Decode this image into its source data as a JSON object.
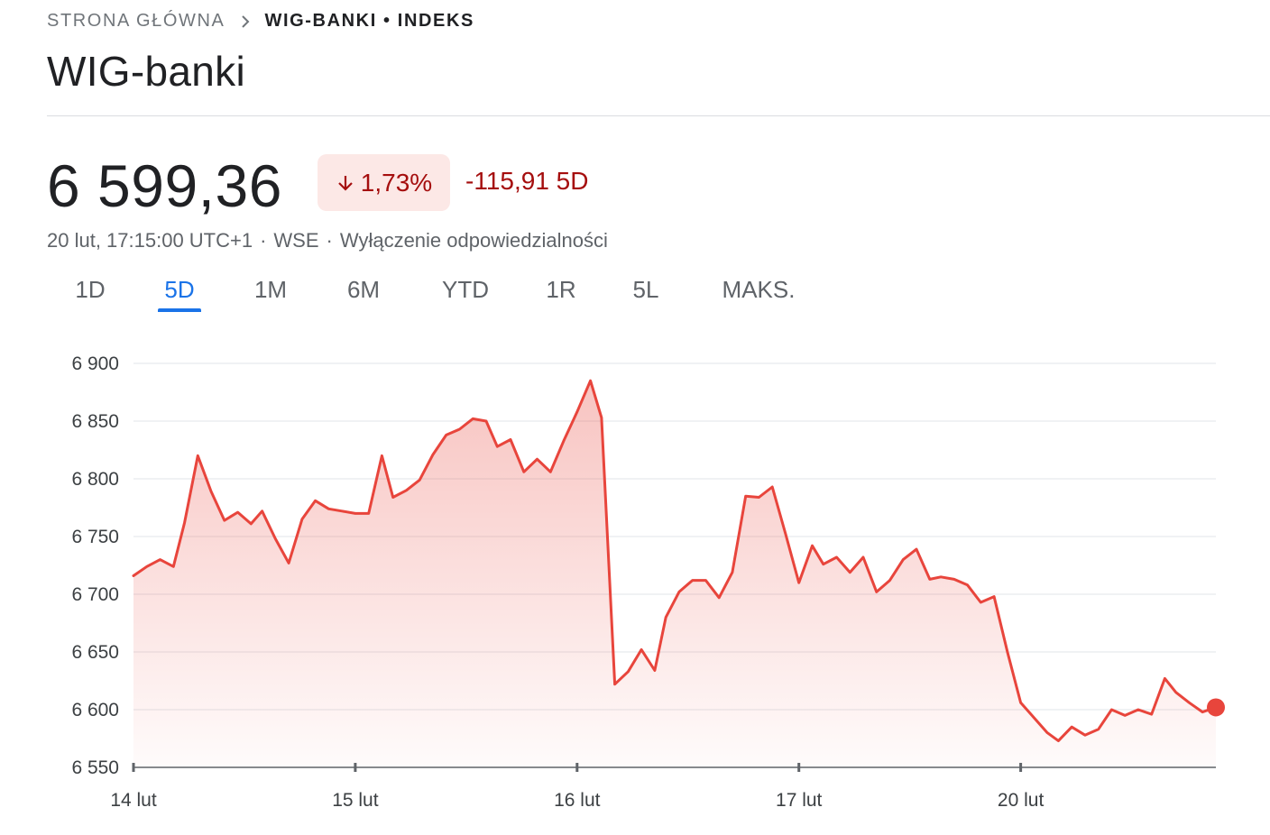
{
  "breadcrumb": {
    "home": "STRONA GŁÓWNA",
    "current": "WIG-BANKI • INDEKS"
  },
  "title": "WIG-banki",
  "quote": {
    "price": "6 599,36",
    "change_percent": "1,73%",
    "change_direction": "down",
    "change_abs": "-115,91 5D",
    "timestamp": "20 lut, 17:15:00 UTC+1",
    "exchange": "WSE",
    "disclaimer": "Wyłączenie odpowiedzialności",
    "separator": "·"
  },
  "tabs": [
    "1D",
    "5D",
    "1M",
    "6M",
    "YTD",
    "1R",
    "5L",
    "MAKS."
  ],
  "active_tab": "5D",
  "colors": {
    "accent": "#1a73e8",
    "negative": "#a50e0e",
    "negative_bg": "#fce8e6",
    "line": "#e8453c"
  },
  "icons": {
    "breadcrumb_separator": "chevron-right-icon",
    "change_arrow": "arrow-down-icon"
  },
  "chart_data": {
    "type": "line",
    "area_fill": true,
    "y_tick_labels": [
      "6 900",
      "6 850",
      "6 800",
      "6 750",
      "6 700",
      "6 650",
      "6 600",
      "6 550"
    ],
    "y_ticks": [
      6900,
      6850,
      6800,
      6750,
      6700,
      6650,
      6600,
      6550
    ],
    "ylim": [
      6550,
      6900
    ],
    "x_tick_labels": [
      "14 lut",
      "15 lut",
      "16 lut",
      "17 lut",
      "20 lut"
    ],
    "x_ticks": [
      0,
      1,
      2,
      3,
      4
    ],
    "xlim": [
      0,
      4.88
    ],
    "grid": true,
    "series": [
      {
        "x": [
          0,
          0.06,
          0.12,
          0.18,
          0.23,
          0.29,
          0.35,
          0.41,
          0.47,
          0.53,
          0.58,
          0.64,
          0.7,
          0.76,
          0.82,
          0.88,
          0.94,
          1.0,
          1.06,
          1.12,
          1.17,
          1.23,
          1.29,
          1.35,
          1.41,
          1.47,
          1.53,
          1.59,
          1.64,
          1.7,
          1.76,
          1.82,
          1.88,
          1.94,
          2.0,
          2.06,
          2.11,
          2.17,
          2.23,
          2.29,
          2.35,
          2.4,
          2.46,
          2.52,
          2.58,
          2.64,
          2.7,
          2.76,
          2.82,
          2.88,
          2.94,
          3.0,
          3.06,
          3.11,
          3.17,
          3.23,
          3.29,
          3.35,
          3.41,
          3.47,
          3.53,
          3.59,
          3.64,
          3.7,
          3.76,
          3.82,
          3.88,
          3.94,
          4.0,
          4.06,
          4.12,
          4.17,
          4.23,
          4.29,
          4.35,
          4.41,
          4.47,
          4.53,
          4.59,
          4.65,
          4.7,
          4.76,
          4.82,
          4.88
        ],
        "y": [
          6716,
          6724,
          6730,
          6724,
          6762,
          6820,
          6789,
          6764,
          6771,
          6761,
          6772,
          6748,
          6727,
          6765,
          6781,
          6774,
          6772,
          6770,
          6770,
          6820,
          6784,
          6790,
          6799,
          6821,
          6838,
          6843,
          6852,
          6850,
          6828,
          6834,
          6806,
          6817,
          6806,
          6833,
          6858,
          6885,
          6853,
          6622,
          6633,
          6652,
          6634,
          6680,
          6702,
          6712,
          6712,
          6697,
          6719,
          6785,
          6784,
          6793,
          6752,
          6710,
          6742,
          6726,
          6732,
          6719,
          6732,
          6702,
          6712,
          6730,
          6739,
          6713,
          6715,
          6713,
          6708,
          6693,
          6698,
          6650,
          6606,
          6593,
          6580,
          6573,
          6585,
          6578,
          6583,
          6600,
          6595,
          6600,
          6596,
          6627,
          6615,
          6606,
          6598,
          6602
        ]
      }
    ],
    "last_point_marker": true
  }
}
